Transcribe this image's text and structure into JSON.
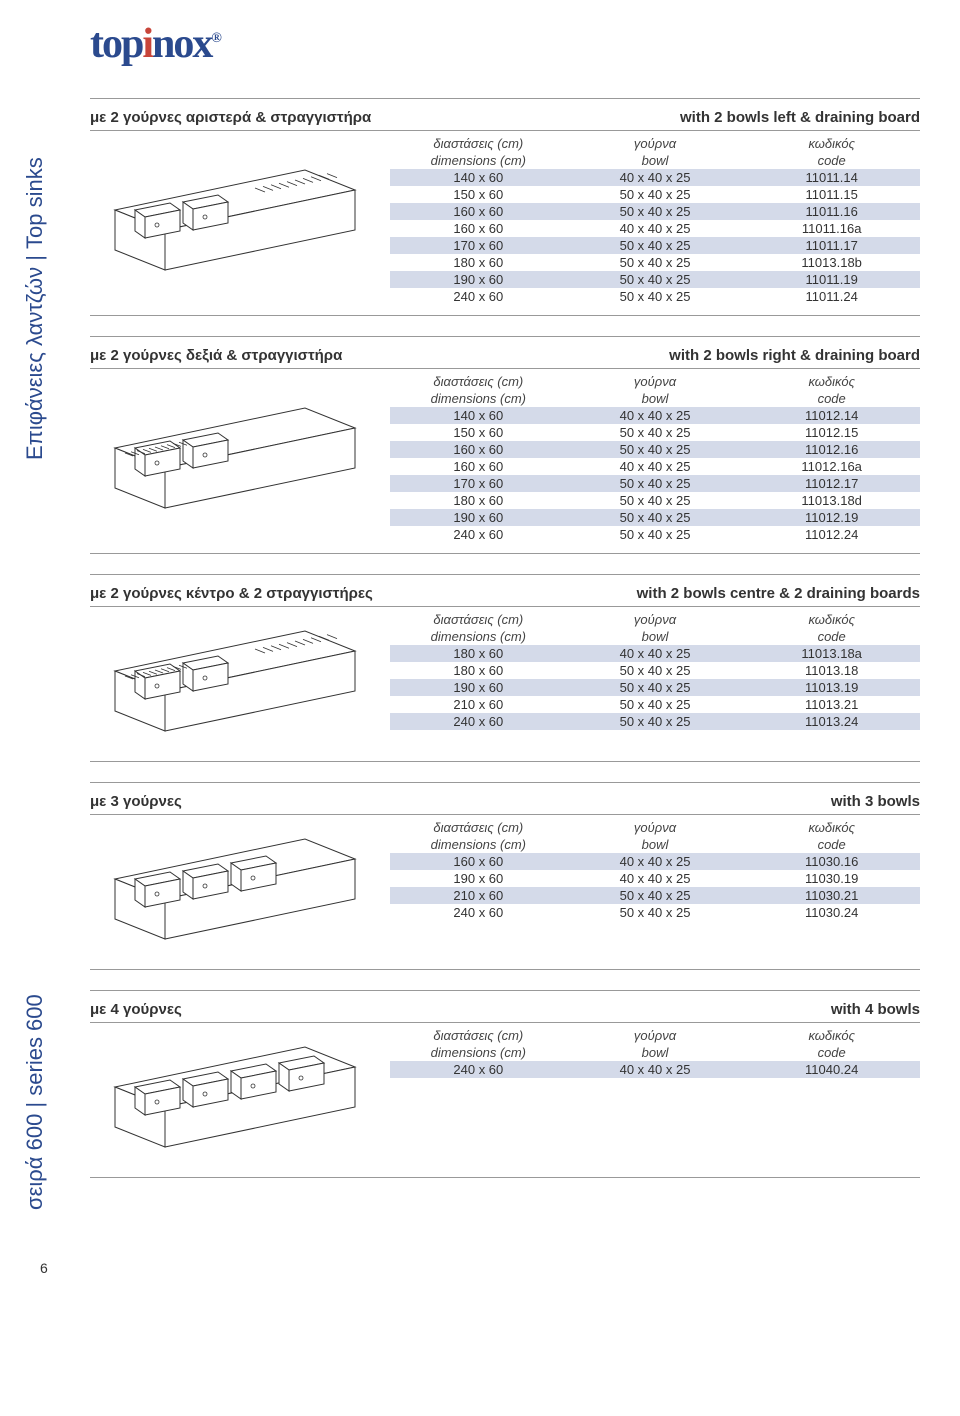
{
  "logo": {
    "text_pre": "top",
    "text_red": "i",
    "text_post": "nox",
    "sup": "®"
  },
  "sidebar": {
    "tab1": "Επιφάνειες λαντζών | Top sinks",
    "tab2": "σειρά 600 | series 600"
  },
  "headers": {
    "dim_gr": "διαστάσεις (cm)",
    "dim_en": "dimensions (cm)",
    "bowl_gr": "γούρνα",
    "bowl_en": "bowl",
    "code_gr": "κωδικός",
    "code_en": "code"
  },
  "sections": [
    {
      "title_left": "με 2 γούρνες αριστερά & στραγγιστήρα",
      "title_right": "with 2 bowls left & draining board",
      "rows": [
        {
          "d": "140 x 60",
          "b": "40 x 40 x 25",
          "c": "11011.14"
        },
        {
          "d": "150 x 60",
          "b": "50 x 40 x 25",
          "c": "11011.15"
        },
        {
          "d": "160 x 60",
          "b": "50 x 40 x 25",
          "c": "11011.16"
        },
        {
          "d": "160 x 60",
          "b": "40 x 40 x 25",
          "c": "11011.16a"
        },
        {
          "d": "170 x 60",
          "b": "50 x 40 x 25",
          "c": "11011.17"
        },
        {
          "d": "180 x 60",
          "b": "50 x 40 x 25",
          "c": "11013.18b"
        },
        {
          "d": "190 x 60",
          "b": "50 x 40 x 25",
          "c": "11011.19"
        },
        {
          "d": "240 x 60",
          "b": "50 x 40 x 25",
          "c": "11011.24"
        }
      ]
    },
    {
      "title_left": "με 2 γούρνες δεξιά & στραγγιστήρα",
      "title_right": "with 2 bowls right & draining board",
      "rows": [
        {
          "d": "140 x 60",
          "b": "40 x 40 x 25",
          "c": "11012.14"
        },
        {
          "d": "150 x 60",
          "b": "50 x 40 x 25",
          "c": "11012.15"
        },
        {
          "d": "160 x 60",
          "b": "50 x 40 x 25",
          "c": "11012.16"
        },
        {
          "d": "160 x 60",
          "b": "40 x 40 x 25",
          "c": "11012.16a"
        },
        {
          "d": "170 x 60",
          "b": "50 x 40 x 25",
          "c": "11012.17"
        },
        {
          "d": "180 x 60",
          "b": "50 x 40 x 25",
          "c": "11013.18d"
        },
        {
          "d": "190 x 60",
          "b": "50 x 40 x 25",
          "c": "11012.19"
        },
        {
          "d": "240 x 60",
          "b": "50 x 40 x 25",
          "c": "11012.24"
        }
      ]
    },
    {
      "title_left": "με 2 γούρνες κέντρο & 2 στραγγιστήρες",
      "title_right": "with 2 bowls centre & 2 draining boards",
      "rows": [
        {
          "d": "180 x 60",
          "b": "40 x 40 x 25",
          "c": "11013.18a"
        },
        {
          "d": "180 x 60",
          "b": "50 x 40 x 25",
          "c": "11013.18"
        },
        {
          "d": "190 x 60",
          "b": "50 x 40 x 25",
          "c": "11013.19"
        },
        {
          "d": "210 x 60",
          "b": "50 x 40 x 25",
          "c": "11013.21"
        },
        {
          "d": "240 x 60",
          "b": "50 x 40 x 25",
          "c": "11013.24"
        }
      ]
    },
    {
      "title_left": "με 3 γούρνες",
      "title_right": "with 3 bowls",
      "rows": [
        {
          "d": "160 x 60",
          "b": "40 x 40 x 25",
          "c": "11030.16"
        },
        {
          "d": "190 x 60",
          "b": "40 x 40 x 25",
          "c": "11030.19"
        },
        {
          "d": "210 x 60",
          "b": "50 x 40 x 25",
          "c": "11030.21"
        },
        {
          "d": "240 x 60",
          "b": "50 x 40 x 25",
          "c": "11030.24"
        }
      ]
    },
    {
      "title_left": "με 4 γούρνες",
      "title_right": "with 4 bowls",
      "rows": [
        {
          "d": "240 x 60",
          "b": "40 x 40 x 25",
          "c": "11040.24"
        }
      ]
    }
  ],
  "page_number": "6"
}
